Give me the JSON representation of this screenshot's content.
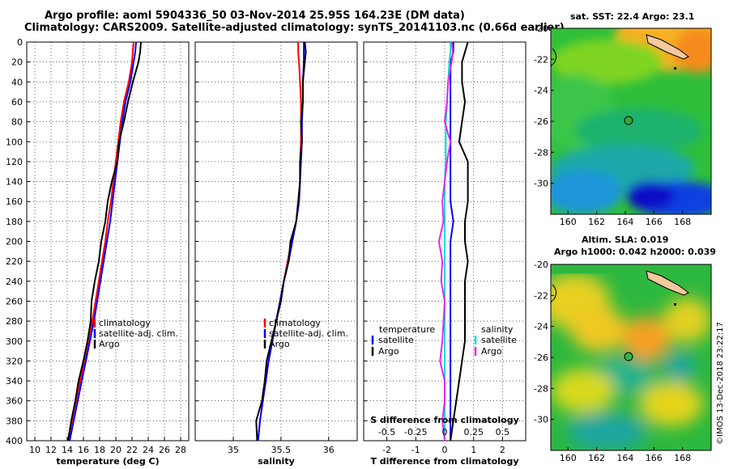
{
  "titles": {
    "line1": "Argo profile: aoml 5904336_50 03-Nov-2014 25.95S 164.23E (DM data)",
    "line2": "Climatology: CARS2009. Satellite-adjusted climatology: synTS_20141103.nc (0.66d earlier)"
  },
  "map_titles": {
    "sst": "sat. SST: 22.4 Argo: 23.1",
    "sla1": "Altim. SLA: 0.019",
    "sla2": "Argo h1000: 0.042 h2000: 0.039"
  },
  "credit": "©IMOS 13-Dec-2018 23:22:17",
  "colors": {
    "climatology": "#ff0000",
    "satellite": "#0000ff",
    "argo": "#000000",
    "sal_satellite": "#00dddd",
    "sal_argo": "#ee22ee"
  },
  "chart_data": [
    {
      "type": "line",
      "name": "temperature",
      "xlabel": "temperature (deg C)",
      "ylabel": "",
      "xlim": [
        9,
        29
      ],
      "ylim": [
        400,
        0
      ],
      "x_ticks": [
        "10",
        "12",
        "14",
        "16",
        "18",
        "20",
        "22",
        "24",
        "26",
        "28"
      ],
      "x_tick_values": [
        10,
        12,
        14,
        16,
        18,
        20,
        22,
        24,
        26,
        28
      ],
      "y_ticks": [
        "0",
        "20",
        "40",
        "60",
        "80",
        "100",
        "120",
        "140",
        "160",
        "180",
        "200",
        "220",
        "240",
        "260",
        "280",
        "300",
        "320",
        "340",
        "360",
        "380",
        "400"
      ],
      "grid": true,
      "legend": [
        "climatology",
        "satellite-adj. clim.",
        "Argo"
      ],
      "depth": [
        0,
        10,
        20,
        40,
        60,
        80,
        100,
        120,
        140,
        160,
        180,
        200,
        220,
        240,
        260,
        280,
        300,
        320,
        340,
        360,
        380,
        400
      ],
      "series": [
        {
          "name": "climatology",
          "values": [
            22.2,
            22.1,
            22.0,
            21.6,
            21.0,
            20.6,
            20.3,
            20.0,
            19.7,
            19.4,
            19.0,
            18.7,
            18.3,
            17.9,
            17.5,
            17.1,
            16.6,
            16.1,
            15.6,
            15.1,
            14.6,
            14.1
          ]
        },
        {
          "name": "satellite-adj. clim.",
          "values": [
            22.5,
            22.4,
            22.2,
            21.8,
            21.2,
            20.8,
            20.5,
            20.2,
            19.9,
            19.6,
            19.3,
            18.9,
            18.5,
            18.1,
            17.7,
            17.3,
            16.8,
            16.3,
            15.8,
            15.3,
            14.8,
            14.3
          ]
        },
        {
          "name": "Argo",
          "values": [
            23.1,
            23.0,
            22.8,
            22.1,
            21.5,
            21.0,
            20.4,
            20.2,
            19.5,
            19.0,
            18.7,
            18.2,
            17.9,
            17.4,
            17.0,
            16.9,
            16.5,
            16.0,
            15.4,
            15.0,
            14.5,
            14.1
          ]
        }
      ]
    },
    {
      "type": "line",
      "name": "salinity",
      "xlabel": "salinity",
      "xlim": [
        34.6,
        36.3
      ],
      "ylim": [
        400,
        0
      ],
      "x_ticks": [
        "35",
        "35.5",
        "36"
      ],
      "x_tick_values": [
        35,
        35.5,
        36
      ],
      "grid": true,
      "legend": [
        "climatology",
        "satellite-adj. clim.",
        "Argo"
      ],
      "depth": [
        0,
        10,
        20,
        40,
        60,
        80,
        100,
        120,
        140,
        160,
        180,
        200,
        220,
        240,
        260,
        280,
        300,
        320,
        340,
        360,
        380,
        400
      ],
      "series": [
        {
          "name": "climatology",
          "values": [
            35.68,
            35.68,
            35.69,
            35.7,
            35.71,
            35.71,
            35.71,
            35.7,
            35.7,
            35.69,
            35.66,
            35.61,
            35.57,
            35.53,
            35.49,
            35.45,
            35.41,
            35.37,
            35.34,
            35.31,
            35.28,
            35.26
          ]
        },
        {
          "name": "satellite-adj. clim.",
          "values": [
            35.74,
            35.74,
            35.74,
            35.73,
            35.73,
            35.72,
            35.72,
            35.71,
            35.7,
            35.69,
            35.66,
            35.62,
            35.58,
            35.53,
            35.49,
            35.45,
            35.41,
            35.37,
            35.34,
            35.31,
            35.28,
            35.26
          ]
        },
        {
          "name": "Argo",
          "values": [
            35.75,
            35.76,
            35.75,
            35.73,
            35.73,
            35.71,
            35.72,
            35.7,
            35.7,
            35.68,
            35.66,
            35.6,
            35.58,
            35.53,
            35.5,
            35.45,
            35.4,
            35.35,
            35.33,
            35.3,
            35.24,
            35.25
          ]
        }
      ]
    },
    {
      "type": "line",
      "name": "difference",
      "xlabel": "T difference from climatology",
      "xlabel2": "S difference from climatology",
      "xlim": [
        -2.8,
        2.8
      ],
      "ylim": [
        400,
        0
      ],
      "x_ticks": [
        "-2",
        "-1",
        "0",
        "1",
        "2"
      ],
      "x_tick_values": [
        -2,
        -1,
        0,
        1,
        2
      ],
      "s_ticks": [
        "-0.5",
        "-0.25",
        "0",
        "0.25",
        "0.5"
      ],
      "s_tick_values": [
        -0.5,
        -0.25,
        0,
        0.25,
        0.5
      ],
      "grid": true,
      "legend_left_title": "temperature",
      "legend_right_title": "salinity",
      "legend_left": [
        "satellite",
        "Argo"
      ],
      "legend_right": [
        "satellite",
        "Argo"
      ],
      "depth": [
        0,
        10,
        20,
        40,
        60,
        80,
        100,
        120,
        140,
        160,
        180,
        200,
        220,
        240,
        260,
        280,
        300,
        320,
        340,
        360,
        380,
        400
      ],
      "series": [
        {
          "name": "T satellite",
          "values": [
            0.3,
            0.3,
            0.2,
            0.2,
            0.2,
            0.2,
            0.2,
            0.2,
            0.2,
            0.2,
            0.3,
            0.2,
            0.2,
            0.2,
            0.2,
            0.2,
            0.2,
            0.2,
            0.2,
            0.2,
            0.2,
            0.2
          ]
        },
        {
          "name": "T Argo",
          "values": [
            0.8,
            0.7,
            0.6,
            0.6,
            0.7,
            0.6,
            0.5,
            0.8,
            0.8,
            0.8,
            0.7,
            0.7,
            0.8,
            0.7,
            0.7,
            0.7,
            0.7,
            0.6,
            0.5,
            0.4,
            0.3,
            0.2
          ]
        },
        {
          "name": "S satellite",
          "values": [
            0.05,
            0.05,
            0.04,
            0.03,
            0.02,
            0.01,
            0.01,
            0.01,
            0.0,
            0.0,
            0.0,
            0.0,
            0.0,
            0.0,
            0.0,
            0.0,
            0.0,
            0.0,
            0.0,
            0.0,
            0.0,
            0.0
          ]
        },
        {
          "name": "S Argo",
          "values": [
            0.06,
            0.07,
            0.06,
            0.03,
            0.02,
            0.0,
            0.05,
            0.02,
            0.0,
            -0.02,
            -0.01,
            -0.05,
            -0.02,
            -0.03,
            0.0,
            -0.01,
            -0.02,
            -0.04,
            0.0,
            0.0,
            -0.02,
            0.0
          ]
        }
      ]
    },
    {
      "type": "heatmap",
      "name": "sst-map",
      "title": "sat. SST: 22.4 Argo: 23.1",
      "x_ticks": [
        "160",
        "162",
        "164",
        "166",
        "168"
      ],
      "y_ticks": [
        "-20",
        "-22",
        "-24",
        "-26",
        "-28",
        "-30"
      ],
      "xlim": [
        158.8,
        170.0
      ],
      "ylim": [
        -32.0,
        -20.0
      ],
      "argo_position": [
        164.23,
        -25.95
      ]
    },
    {
      "type": "heatmap",
      "name": "sla-map",
      "title": "Altim. SLA: 0.019",
      "x_ticks": [
        "160",
        "162",
        "164",
        "166",
        "168"
      ],
      "y_ticks": [
        "-20",
        "-22",
        "-24",
        "-26",
        "-28",
        "-30"
      ],
      "xlim": [
        158.8,
        170.0
      ],
      "ylim": [
        -32.0,
        -20.0
      ],
      "argo_position": [
        164.23,
        -25.95
      ]
    }
  ]
}
